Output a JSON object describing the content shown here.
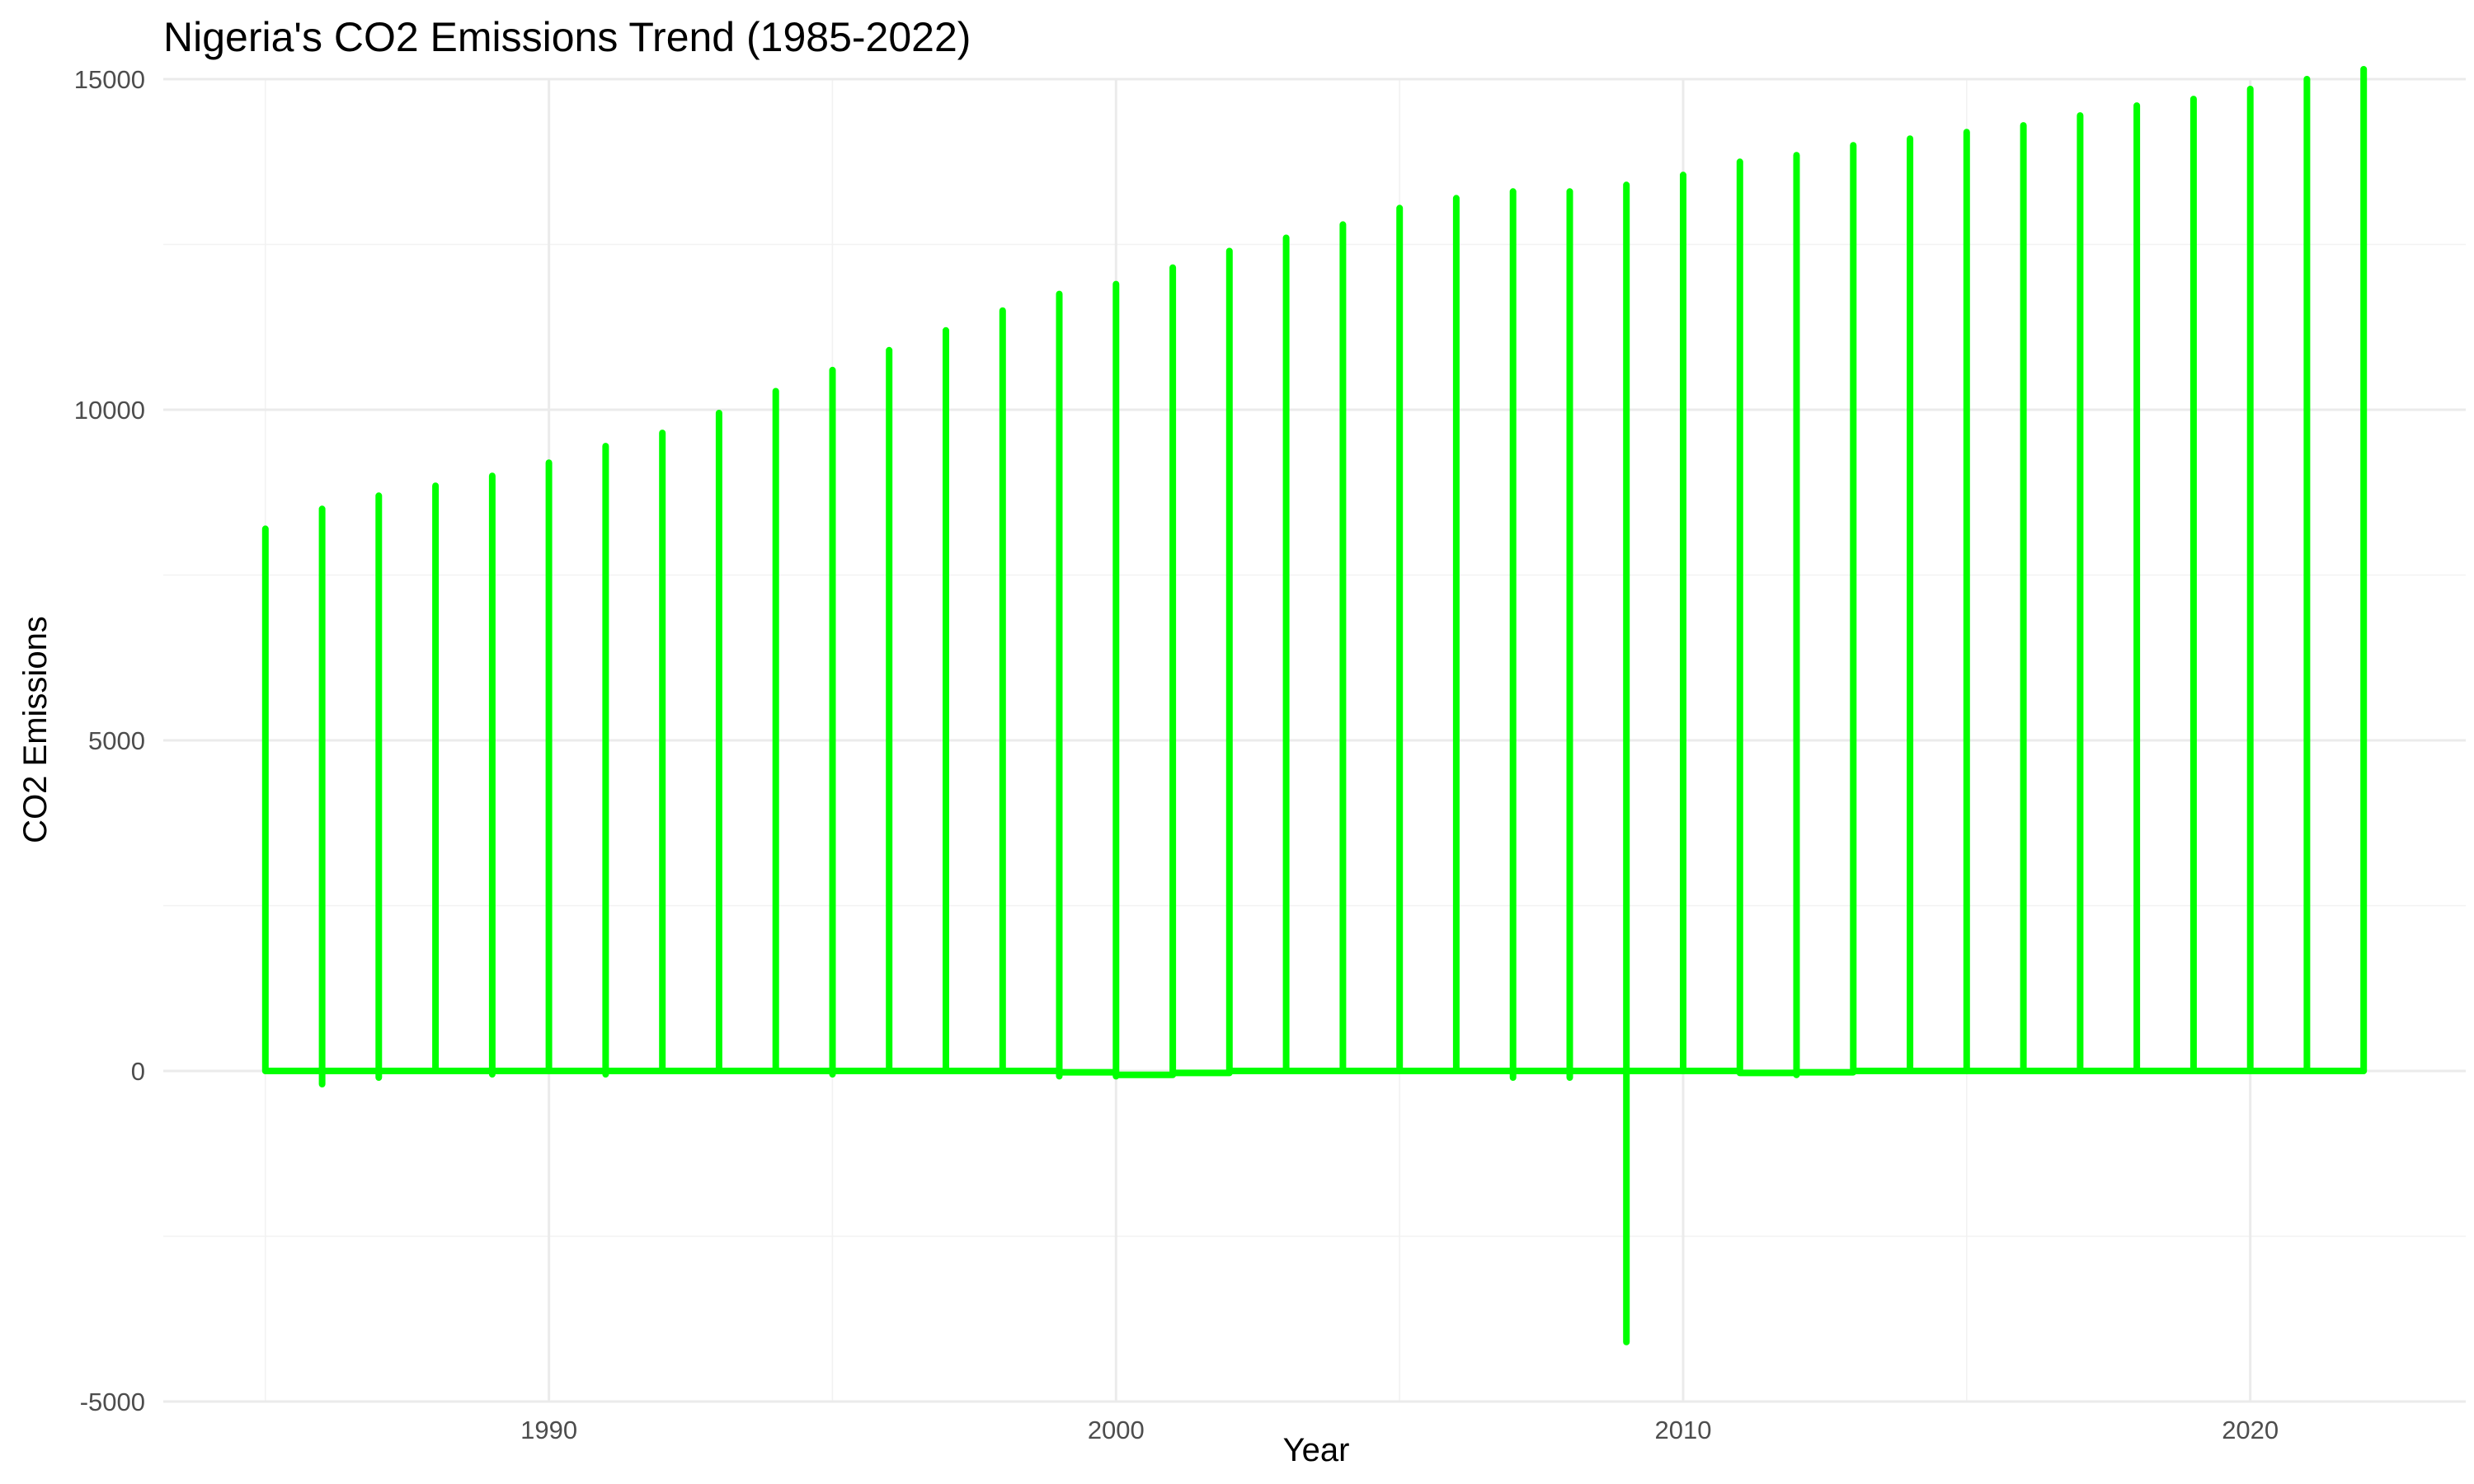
{
  "chart_data": {
    "type": "line",
    "title": "Nigeria's CO2 Emissions Trend (1985-2022)",
    "xlabel": "Year",
    "ylabel": "CO2 Emissions",
    "xlim": [
      1983.2,
      2023.8
    ],
    "ylim": [
      -5000,
      15000
    ],
    "x_ticks": [
      1990,
      2000,
      2010,
      2020
    ],
    "y_ticks": [
      -5000,
      0,
      5000,
      10000,
      15000
    ],
    "grid": true,
    "legend": "none",
    "series": [
      {
        "color": "#00ff00",
        "points": [
          [
            1985,
            0
          ],
          [
            1985,
            8200
          ],
          [
            1985,
            0
          ],
          [
            1986,
            0
          ],
          [
            1986,
            8500
          ],
          [
            1986,
            -200
          ],
          [
            1986,
            0
          ],
          [
            1987,
            0
          ],
          [
            1987,
            8700
          ],
          [
            1987,
            -100
          ],
          [
            1987,
            0
          ],
          [
            1988,
            0
          ],
          [
            1988,
            8850
          ],
          [
            1988,
            0
          ],
          [
            1989,
            0
          ],
          [
            1989,
            9000
          ],
          [
            1989,
            -50
          ],
          [
            1989,
            0
          ],
          [
            1990,
            0
          ],
          [
            1990,
            9200
          ],
          [
            1990,
            0
          ],
          [
            1991,
            0
          ],
          [
            1991,
            9450
          ],
          [
            1991,
            -50
          ],
          [
            1991,
            0
          ],
          [
            1992,
            0
          ],
          [
            1992,
            9650
          ],
          [
            1992,
            0
          ],
          [
            1993,
            0
          ],
          [
            1993,
            9950
          ],
          [
            1993,
            0
          ],
          [
            1994,
            0
          ],
          [
            1994,
            10280
          ],
          [
            1994,
            0
          ],
          [
            1995,
            0
          ],
          [
            1995,
            10600
          ],
          [
            1995,
            -50
          ],
          [
            1995,
            0
          ],
          [
            1996,
            0
          ],
          [
            1996,
            10900
          ],
          [
            1996,
            0
          ],
          [
            1997,
            0
          ],
          [
            1997,
            11200
          ],
          [
            1997,
            0
          ],
          [
            1998,
            0
          ],
          [
            1998,
            11500
          ],
          [
            1998,
            0
          ],
          [
            1999,
            0
          ],
          [
            1999,
            11750
          ],
          [
            1999,
            -80
          ],
          [
            1999,
            -20
          ],
          [
            2000,
            -20
          ],
          [
            2000,
            11900
          ],
          [
            2000,
            -80
          ],
          [
            2000,
            -60
          ],
          [
            2001,
            -60
          ],
          [
            2001,
            12150
          ],
          [
            2001,
            -30
          ],
          [
            2002,
            -30
          ],
          [
            2002,
            12400
          ],
          [
            2002,
            0
          ],
          [
            2003,
            0
          ],
          [
            2003,
            12600
          ],
          [
            2003,
            0
          ],
          [
            2004,
            0
          ],
          [
            2004,
            12800
          ],
          [
            2004,
            0
          ],
          [
            2005,
            0
          ],
          [
            2005,
            13050
          ],
          [
            2005,
            0
          ],
          [
            2006,
            0
          ],
          [
            2006,
            13200
          ],
          [
            2006,
            0
          ],
          [
            2007,
            0
          ],
          [
            2007,
            13300
          ],
          [
            2007,
            -100
          ],
          [
            2007,
            0
          ],
          [
            2008,
            0
          ],
          [
            2008,
            13300
          ],
          [
            2008,
            -100
          ],
          [
            2008,
            0
          ],
          [
            2009,
            0
          ],
          [
            2009,
            13400
          ],
          [
            2009,
            -4100
          ],
          [
            2009,
            0
          ],
          [
            2010,
            0
          ],
          [
            2010,
            13550
          ],
          [
            2010,
            0
          ],
          [
            2011,
            0
          ],
          [
            2011,
            13750
          ],
          [
            2011,
            -30
          ],
          [
            2012,
            -30
          ],
          [
            2012,
            13850
          ],
          [
            2012,
            -60
          ],
          [
            2012,
            -20
          ],
          [
            2013,
            -20
          ],
          [
            2013,
            14000
          ],
          [
            2013,
            0
          ],
          [
            2014,
            0
          ],
          [
            2014,
            14100
          ],
          [
            2014,
            0
          ],
          [
            2015,
            0
          ],
          [
            2015,
            14200
          ],
          [
            2015,
            0
          ],
          [
            2016,
            0
          ],
          [
            2016,
            14300
          ],
          [
            2016,
            0
          ],
          [
            2017,
            0
          ],
          [
            2017,
            14450
          ],
          [
            2017,
            0
          ],
          [
            2018,
            0
          ],
          [
            2018,
            14600
          ],
          [
            2018,
            0
          ],
          [
            2019,
            0
          ],
          [
            2019,
            14700
          ],
          [
            2019,
            0
          ],
          [
            2020,
            0
          ],
          [
            2020,
            14850
          ],
          [
            2020,
            0
          ],
          [
            2021,
            0
          ],
          [
            2021,
            15000
          ],
          [
            2021,
            0
          ],
          [
            2022,
            0
          ],
          [
            2022,
            15150
          ],
          [
            2022,
            0
          ]
        ]
      }
    ]
  }
}
